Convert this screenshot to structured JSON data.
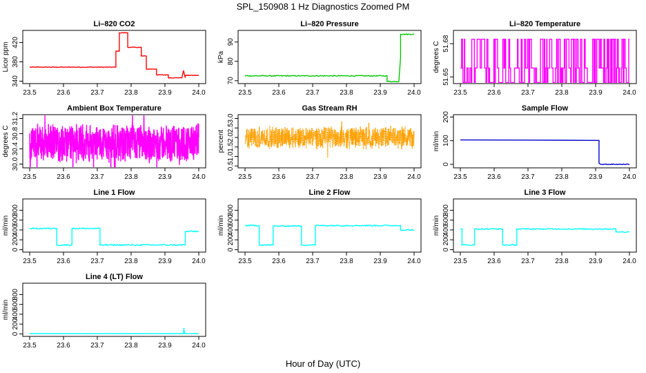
{
  "page": {
    "title": "SPL_150908  1 Hz Diagnostics Zoomed PM",
    "xlabel": "Hour of Day (UTC)"
  },
  "chart_data": [
    {
      "id": "co2",
      "type": "line",
      "title": "Li–820 CO2",
      "ylabel": "Licor ppm",
      "color": "#ff0000",
      "noise": 0.6,
      "xlim": [
        23.5,
        24.0
      ],
      "ylim": [
        335,
        445
      ],
      "xticks": [
        "23.5",
        "23.6",
        "23.7",
        "23.8",
        "23.9",
        "24.0"
      ],
      "yticks": [
        "340",
        "380",
        "420"
      ],
      "series": [
        {
          "x": [
            23.5,
            23.755,
            23.755,
            23.765,
            23.765,
            23.79,
            23.79,
            23.83,
            23.83,
            23.845,
            23.845,
            23.875,
            23.875,
            23.91,
            23.91,
            23.95,
            23.955,
            23.96,
            23.96,
            24.0
          ],
          "y": [
            369,
            369,
            402,
            402,
            440,
            440,
            410,
            410,
            392,
            392,
            365,
            365,
            353,
            353,
            347,
            347,
            362,
            347,
            352,
            352
          ]
        }
      ]
    },
    {
      "id": "pressure",
      "type": "line",
      "title": "Li–820 Pressure",
      "ylabel": "kPa",
      "color": "#00c800",
      "noise": 0.25,
      "xlim": [
        23.5,
        24.0
      ],
      "ylim": [
        68.5,
        96
      ],
      "xticks": [
        "23.5",
        "23.6",
        "23.7",
        "23.8",
        "23.9",
        "24.0"
      ],
      "yticks": [
        "70",
        "80",
        "90"
      ],
      "series": [
        {
          "x": [
            23.5,
            23.92,
            23.92,
            23.955,
            23.96,
            23.96,
            24.0
          ],
          "y": [
            72.5,
            72.5,
            69.6,
            69.6,
            82,
            94,
            94
          ]
        }
      ]
    },
    {
      "id": "licor_temp",
      "type": "line",
      "title": "Li–820 Temperature",
      "ylabel": "degrees C",
      "color": "#ff00ff",
      "pattern": "toggle",
      "levels": [
        51.645,
        51.658,
        51.684
      ],
      "xlim": [
        23.5,
        24.0
      ],
      "ylim": [
        51.644,
        51.692
      ],
      "xticks": [
        "23.5",
        "23.6",
        "23.7",
        "23.8",
        "23.9",
        "24.0"
      ],
      "yticks": [
        "51.65",
        "51.68"
      ]
    },
    {
      "id": "box_temp",
      "type": "line",
      "title": "Ambient Box Temperature",
      "ylabel": "degrees C",
      "color": "#ff00ff",
      "pattern": "noise",
      "center": 30.55,
      "spread": 0.55,
      "xlim": [
        23.5,
        24.0
      ],
      "ylim": [
        29.9,
        31.3
      ],
      "xticks": [
        "23.5",
        "23.6",
        "23.7",
        "23.8",
        "23.9",
        "24.0"
      ],
      "yticks": [
        "30.0",
        "30.4",
        "30.8",
        "31.2"
      ]
    },
    {
      "id": "rh",
      "type": "line",
      "title": "Gas Stream RH",
      "ylabel": "percent",
      "color": "#ffa000",
      "pattern": "noise",
      "center": 2.0,
      "spread": 0.65,
      "dots": true,
      "xlim": [
        23.5,
        24.0
      ],
      "ylim": [
        0.4,
        3.2
      ],
      "xticks": [
        "23.5",
        "23.6",
        "23.7",
        "23.8",
        "23.9",
        "24.0"
      ],
      "yticks": [
        "0.5",
        "1.0",
        "1.5",
        "2.0",
        "2.5",
        "3.0"
      ]
    },
    {
      "id": "sample_flow",
      "type": "line",
      "title": "Sample Flow",
      "ylabel": "ml/min",
      "color": "#0000cd",
      "noise": 1.5,
      "xlim": [
        23.5,
        24.0
      ],
      "ylim": [
        -15,
        210
      ],
      "xticks": [
        "23.5",
        "23.6",
        "23.7",
        "23.8",
        "23.9",
        "24.0"
      ],
      "yticks": [
        "0",
        "100",
        "200"
      ],
      "series": [
        {
          "x": [
            23.5,
            23.8,
            23.91,
            23.91,
            23.915,
            24.0
          ],
          "y": [
            103,
            102,
            101,
            5,
            0,
            0
          ]
        }
      ]
    },
    {
      "id": "line1",
      "type": "line",
      "title": "Line 1 Flow",
      "ylabel": "ml/min",
      "color": "#00ffff",
      "noise": 12,
      "xlim": [
        23.5,
        24.0
      ],
      "ylim": [
        -50,
        1030
      ],
      "xticks": [
        "23.5",
        "23.6",
        "23.7",
        "23.8",
        "23.9",
        "24.0"
      ],
      "yticks": [
        "0",
        "200",
        "400",
        "600",
        "800"
      ],
      "series": [
        {
          "x": [
            23.5,
            23.58,
            23.58,
            23.625,
            23.625,
            23.708,
            23.708,
            23.96,
            23.96,
            24.0
          ],
          "y": [
            430,
            430,
            95,
            95,
            430,
            430,
            95,
            95,
            370,
            370
          ]
        }
      ]
    },
    {
      "id": "line2",
      "type": "line",
      "title": "Line 2 Flow",
      "ylabel": "ml/min",
      "color": "#00ffff",
      "noise": 12,
      "xlim": [
        23.5,
        24.0
      ],
      "ylim": [
        -50,
        1030
      ],
      "xticks": [
        "23.5",
        "23.6",
        "23.7",
        "23.8",
        "23.9",
        "24.0"
      ],
      "yticks": [
        "0",
        "200",
        "400",
        "600",
        "800"
      ],
      "series": [
        {
          "x": [
            23.5,
            23.542,
            23.542,
            23.583,
            23.583,
            23.667,
            23.667,
            23.708,
            23.708,
            23.96,
            23.96,
            24.0
          ],
          "y": [
            490,
            490,
            95,
            95,
            480,
            480,
            95,
            95,
            490,
            490,
            400,
            400
          ]
        }
      ]
    },
    {
      "id": "line3",
      "type": "line",
      "title": "Line 3 Flow",
      "ylabel": "ml/min",
      "color": "#00ffff",
      "noise": 10,
      "xlim": [
        23.5,
        24.0
      ],
      "ylim": [
        -50,
        1030
      ],
      "xticks": [
        "23.5",
        "23.6",
        "23.7",
        "23.8",
        "23.9",
        "24.0"
      ],
      "yticks": [
        "0",
        "200",
        "400",
        "600",
        "800"
      ],
      "series": [
        {
          "x": [
            23.5,
            23.505,
            23.505,
            23.542,
            23.542,
            23.625,
            23.625,
            23.667,
            23.667,
            23.96,
            23.96,
            24.0
          ],
          "y": [
            420,
            420,
            95,
            95,
            420,
            420,
            95,
            95,
            420,
            420,
            360,
            360
          ]
        }
      ]
    },
    {
      "id": "line4",
      "type": "line",
      "title": "Line 4 (LT) Flow",
      "ylabel": "ml/min",
      "color": "#00ffff",
      "noise": 2,
      "xlim": [
        23.5,
        24.0
      ],
      "ylim": [
        -50,
        1030
      ],
      "xticks": [
        "23.5",
        "23.6",
        "23.7",
        "23.8",
        "23.9",
        "24.0"
      ],
      "yticks": [
        "0",
        "200",
        "400",
        "600",
        "800"
      ],
      "series": [
        {
          "x": [
            23.5,
            23.955,
            23.956,
            23.958,
            23.96,
            24.0
          ],
          "y": [
            8,
            8,
            120,
            8,
            8,
            8
          ]
        }
      ]
    }
  ]
}
